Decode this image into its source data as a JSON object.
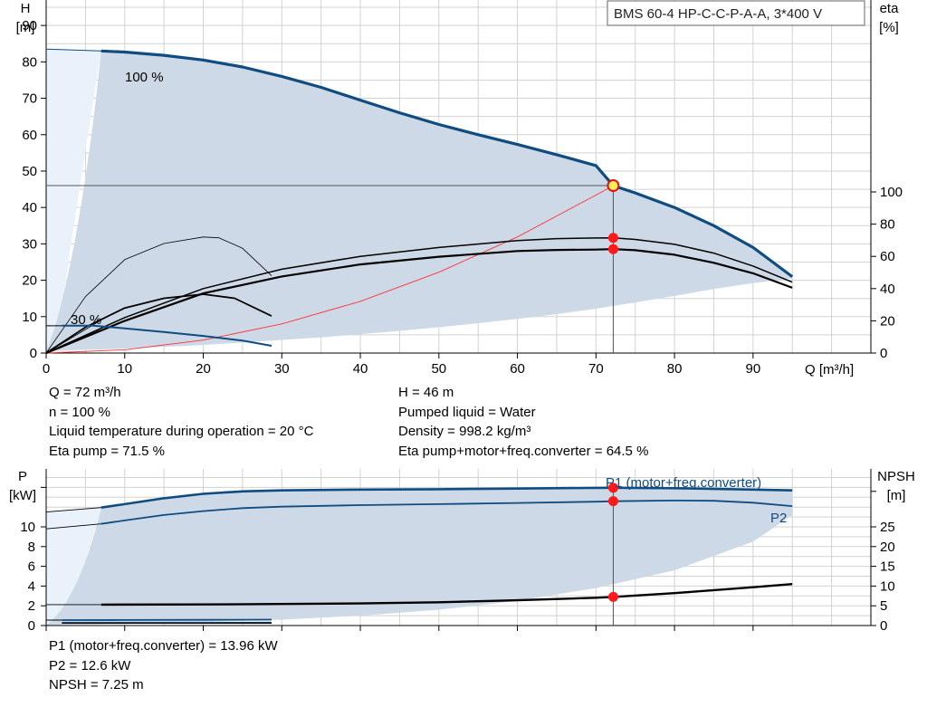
{
  "chart_data": [
    {
      "type": "line",
      "panel": "head-efficiency",
      "title": "BMS 60-4 HP-C-C-P-A-A, 3*400 V",
      "xlabel": "Q [m³/h]",
      "ylabel_left": [
        "H",
        "[m]"
      ],
      "ylabel_right": [
        "eta",
        "[%]"
      ],
      "xlim": [
        0,
        105
      ],
      "ylim_left": [
        0,
        97
      ],
      "ylim_right": [
        0,
        100
      ],
      "x_ticks": [
        0,
        10,
        20,
        30,
        40,
        50,
        60,
        70,
        80,
        90
      ],
      "y_ticks_left": [
        0,
        10,
        20,
        30,
        40,
        50,
        60,
        70,
        80,
        90
      ],
      "y_ticks_right": [
        0,
        20,
        40,
        60,
        80,
        100
      ],
      "grid": true,
      "curve_labels": [
        "100 %",
        "30 %"
      ],
      "series": [
        {
          "role": "head-max",
          "axis": "left",
          "color": "#0f4c81",
          "x": [
            7,
            10,
            15,
            20,
            25,
            30,
            35,
            40,
            45,
            50,
            55,
            60,
            65,
            70,
            72.2,
            75,
            80,
            85,
            90,
            95
          ],
          "y": [
            83,
            82.7,
            81.8,
            80.5,
            78.6,
            76,
            73,
            69.5,
            66,
            62.8,
            60,
            57.3,
            54.5,
            51.5,
            46,
            44,
            40,
            35,
            29,
            21
          ]
        },
        {
          "role": "head-min",
          "axis": "left",
          "color": "#0f4c81",
          "x": [
            2,
            6,
            10,
            15,
            20,
            25,
            28.7
          ],
          "y": [
            7.5,
            7.5,
            6.8,
            5.8,
            4.7,
            3.4,
            2
          ]
        },
        {
          "role": "head-left-boundary",
          "axis": "left",
          "color": "#0f4c81",
          "x": [
            0,
            7
          ],
          "y": [
            83.5,
            83
          ]
        },
        {
          "role": "eta-pump",
          "axis": "right",
          "color": "#000000",
          "width": 2.2,
          "x": [
            0,
            10,
            20,
            30,
            40,
            50,
            60,
            65,
            70,
            72.2,
            75,
            80,
            85,
            90,
            95
          ],
          "y": [
            0,
            20,
            37,
            47.5,
            55,
            59.8,
            63.3,
            64,
            64.2,
            64.5,
            63.8,
            61,
            56,
            49.5,
            40.5
          ]
        },
        {
          "role": "eta-pump-b",
          "axis": "right",
          "color": "#000000",
          "width": 1.5,
          "x": [
            0,
            10,
            20,
            30,
            40,
            50,
            60,
            65,
            70,
            72.2,
            75,
            80,
            85,
            90,
            95
          ],
          "y": [
            0,
            22,
            40,
            52,
            60,
            65.5,
            69.8,
            71,
            71.4,
            71.5,
            70.5,
            67.5,
            62,
            54,
            44
          ]
        },
        {
          "role": "eta-partial-a",
          "axis": "right",
          "color": "#000000",
          "width": 1.8,
          "x": [
            0,
            5,
            10,
            15,
            20,
            24,
            28.7
          ],
          "y": [
            0,
            16,
            28,
            34,
            36.5,
            34,
            23
          ]
        },
        {
          "role": "eta-partial-b",
          "axis": "right",
          "color": "#000000",
          "width": 0.8,
          "x": [
            0,
            5,
            10,
            15,
            20,
            22,
            25,
            28.7
          ],
          "y": [
            0,
            35,
            58,
            68,
            72,
            71.5,
            65,
            48
          ]
        },
        {
          "role": "system-curve",
          "axis": "left",
          "color": "#ff3333",
          "width": 0.9,
          "x": [
            0,
            10,
            20,
            30,
            40,
            50,
            60,
            70,
            72.2
          ],
          "y": [
            0,
            0.9,
            3.55,
            8,
            14.2,
            22.2,
            31.9,
            43.4,
            46
          ]
        }
      ],
      "envelope_left": {
        "x": [
          0,
          5,
          10,
          15,
          20,
          25,
          30,
          35,
          40,
          45,
          50,
          55,
          60,
          65,
          70,
          75,
          80,
          85,
          90,
          95
        ],
        "y": [
          0.5,
          0.9,
          1.2,
          1.7,
          2.2,
          2.9,
          3.6,
          4.3,
          5.2,
          6.1,
          7.1,
          8.2,
          9.4,
          10.7,
          12.2,
          13.9,
          15.7,
          17.6,
          19.2,
          20.5
        ]
      },
      "operating_point": {
        "Q": 72.2,
        "H": 46,
        "eta_pump": 71.5,
        "eta_total": 64.5
      }
    },
    {
      "type": "line",
      "panel": "power-npsh",
      "xlim": [
        0,
        105
      ],
      "ylabel_left": [
        "P",
        "[kW]"
      ],
      "ylabel_right": [
        "NPSH",
        "[m]"
      ],
      "ylim_left": [
        0,
        13.8
      ],
      "ylim_right": [
        0,
        34.5
      ],
      "y_ticks_left": [
        0,
        2,
        4,
        6,
        8,
        10
      ],
      "y_ticks_right": [
        0,
        5,
        10,
        15,
        20,
        25
      ],
      "grid": true,
      "curve_labels": [
        "P1 (motor+freq.converter)",
        "P2"
      ],
      "series": [
        {
          "role": "P1",
          "axis": "left",
          "color": "#0f4c81",
          "width": 2.6,
          "x": [
            7,
            10,
            15,
            20,
            25,
            30,
            40,
            50,
            60,
            70,
            72.2,
            80,
            90,
            95
          ],
          "y": [
            11.95,
            12.3,
            12.9,
            13.35,
            13.6,
            13.7,
            13.78,
            13.82,
            13.88,
            13.95,
            13.96,
            13.92,
            13.78,
            13.7
          ]
        },
        {
          "role": "P2",
          "axis": "left",
          "color": "#0f4c81",
          "width": 1.8,
          "x": [
            7,
            10,
            15,
            20,
            25,
            30,
            40,
            50,
            60,
            70,
            72.2,
            80,
            85,
            90,
            95
          ],
          "y": [
            10.3,
            10.65,
            11.2,
            11.6,
            11.9,
            12.05,
            12.2,
            12.3,
            12.42,
            12.55,
            12.6,
            12.67,
            12.64,
            12.45,
            12.1
          ]
        },
        {
          "role": "P1-low",
          "axis": "left",
          "color": "#0f4c81",
          "width": 1.8,
          "x": [
            2,
            10,
            20,
            28.7
          ],
          "y": [
            0.55,
            0.56,
            0.58,
            0.6
          ]
        },
        {
          "role": "P2-low",
          "axis": "left",
          "color": "#0f4c81",
          "width": 1.2,
          "x": [
            2,
            10,
            20,
            28.7
          ],
          "y": [
            0.3,
            0.3,
            0.3,
            0.32
          ]
        },
        {
          "role": "NPSH",
          "axis": "right",
          "color": "#000000",
          "width": 2.4,
          "x": [
            7,
            20,
            30,
            40,
            50,
            60,
            70,
            72.2,
            80,
            90,
            95
          ],
          "y": [
            5.3,
            5.35,
            5.45,
            5.6,
            5.9,
            6.4,
            7.05,
            7.25,
            8.2,
            9.7,
            10.5
          ]
        },
        {
          "role": "NPSH-low",
          "axis": "right",
          "color": "#000000",
          "width": 1.2,
          "x": [
            2,
            28.7
          ],
          "y": [
            0.6,
            0.6
          ]
        },
        {
          "role": "P1-boundary",
          "axis": "left",
          "color": "#000000",
          "width": 0.9,
          "x": [
            0,
            7
          ],
          "y": [
            11.5,
            11.95
          ]
        },
        {
          "role": "P2-boundary",
          "axis": "left",
          "color": "#000000",
          "width": 0.9,
          "x": [
            0,
            7
          ],
          "y": [
            9.8,
            10.3
          ]
        },
        {
          "role": "NPSH-boundary",
          "axis": "right",
          "color": "#000000",
          "width": 0.9,
          "x": [
            0,
            7
          ],
          "y": [
            5.3,
            5.3
          ]
        },
        {
          "role": "low-boundary",
          "axis": "left",
          "color": "#000000",
          "width": 0.9,
          "x": [
            0,
            2
          ],
          "y": [
            0.55,
            0.55
          ]
        }
      ],
      "envelope_left": {
        "x": [
          0,
          10,
          20,
          30,
          40,
          50,
          60,
          70,
          80,
          90,
          95
        ],
        "y": [
          0.05,
          0.15,
          0.35,
          0.6,
          1.0,
          1.6,
          2.5,
          3.8,
          5.6,
          8.5,
          11.2
        ]
      },
      "operating_point": {
        "Q": 72.2,
        "P1": 13.96,
        "P2": 12.6,
        "NPSH": 7.25
      }
    }
  ],
  "info_top_left": [
    "Q = 72 m³/h",
    "n = 100 %",
    "Liquid temperature during operation = 20 °C",
    "Eta pump = 71.5 %"
  ],
  "info_top_right": [
    "H = 46 m",
    "Pumped liquid = Water",
    "Density = 998.2 kg/m³",
    "Eta pump+motor+freq.converter = 64.5 %"
  ],
  "info_bottom": [
    "P1 (motor+freq.converter) = 13.96 kW",
    "P2 = 12.6 kW",
    "NPSH = 7.25 m"
  ],
  "colors": {
    "curve_blue": "#0f4c81",
    "fill_envelope": "#cdd9e6",
    "fill_light": "#e9f2fb",
    "grid": "#d2d2d2",
    "marker_red": "#ff1a1a",
    "marker_yellow": "#ffee55",
    "system_curve": "#ff3333"
  }
}
